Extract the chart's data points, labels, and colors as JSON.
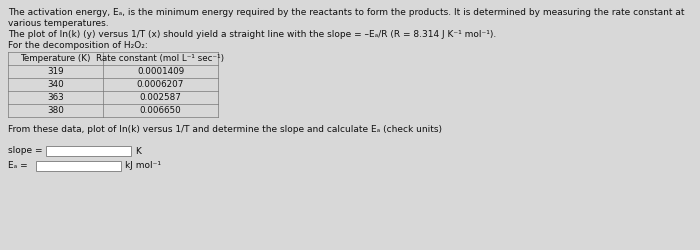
{
  "background_color": "#d8d8d8",
  "text_color": "#111111",
  "para1_line1": "The activation energy, Eₐ, is the minimum energy required by the reactants to form the products. It is determined by measuring the rate constant at",
  "para1_line2": "various temperatures.",
  "para2": "The plot of ln(k) (y) versus 1/T (x) should yield a straight line with the slope = –Eₐ/R (R = 8.314 J K⁻¹ mol⁻¹).",
  "para3": "For the decomposition of H₂O₂:",
  "table_header_col1": "Temperature (K)",
  "table_header_col2": "Rate constant (mol L⁻¹ sec⁻¹)",
  "table_data": [
    [
      "319",
      "0.0001409"
    ],
    [
      "340",
      "0.0006207"
    ],
    [
      "363",
      "0.002587"
    ],
    [
      "380",
      "0.006650"
    ]
  ],
  "para4": "From these data, plot of ln(k) versus 1/T and determine the slope and calculate Eₐ (check units)",
  "slope_label": "slope =",
  "slope_unit": "K",
  "ea_label": "Eₐ =",
  "ea_unit": "kJ mol⁻¹",
  "font_size": 6.5,
  "table_font_size": 6.3
}
